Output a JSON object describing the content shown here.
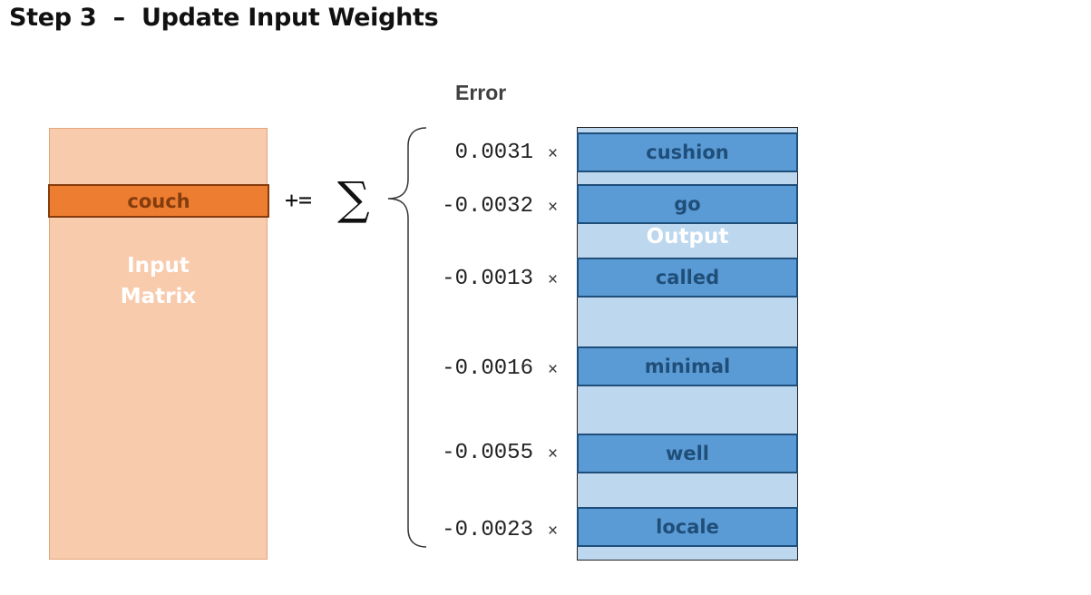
{
  "title": "Step 3  –  Update Input Weights",
  "error_label": "Error",
  "input_matrix": {
    "highlighted_word": "couch",
    "label_line1": "Input",
    "label_line2": "Matrix"
  },
  "operator": "+=",
  "sum_symbol": "∑",
  "output_matrix": {
    "label": "Output",
    "rows": [
      {
        "word": "cushion",
        "error": "0.0031",
        "op": "×"
      },
      {
        "word": "go",
        "error": "-0.0032",
        "op": "×"
      },
      {
        "word": "called",
        "error": "-0.0013",
        "op": "×"
      },
      {
        "word": "minimal",
        "error": "-0.0016",
        "op": "×"
      },
      {
        "word": "well",
        "error": "-0.0055",
        "op": "×"
      },
      {
        "word": "locale",
        "error": "-0.0023",
        "op": "×"
      }
    ]
  },
  "colors": {
    "input_matrix_fill": "#f8cbad",
    "input_row_fill": "#ed7d31",
    "output_matrix_fill": "#bdd7ee",
    "output_row_fill": "#5b9bd5"
  }
}
